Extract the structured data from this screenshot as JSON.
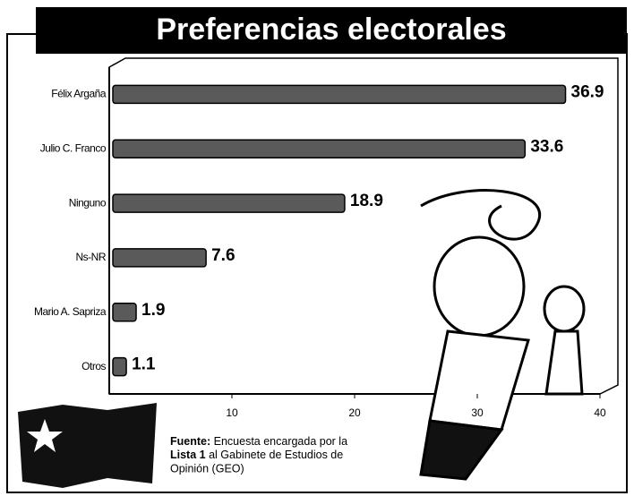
{
  "chart_data": {
    "type": "hbar",
    "title": "Preferencias electorales",
    "categories": [
      "Félix Argaña",
      "Julio C. Franco",
      "Ninguno",
      "Ns-NR",
      "Mario A. Sapriza",
      "Otros"
    ],
    "values": [
      36.9,
      33.6,
      18.9,
      7.6,
      1.9,
      1.1
    ],
    "color": "#5a5a5a",
    "xlim": [
      0,
      40
    ],
    "xticks": [
      10,
      20,
      30,
      40
    ],
    "grid": false,
    "source": [
      "Fuente:",
      "Encuesta encargada por la",
      "Lista 1",
      "al Gabinete de Estudios de",
      "Opinión (GEO)"
    ]
  }
}
